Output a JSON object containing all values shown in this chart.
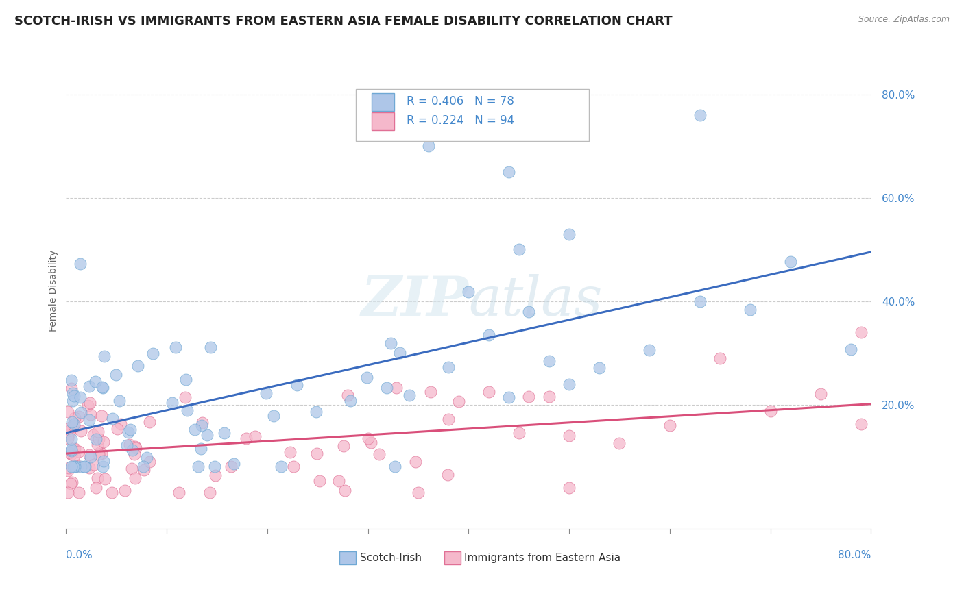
{
  "title": "SCOTCH-IRISH VS IMMIGRANTS FROM EASTERN ASIA FEMALE DISABILITY CORRELATION CHART",
  "source": "Source: ZipAtlas.com",
  "ylabel": "Female Disability",
  "xlim": [
    0.0,
    0.8
  ],
  "ylim": [
    -0.04,
    0.88
  ],
  "series1": {
    "name": "Scotch-Irish",
    "R": 0.406,
    "N": 78,
    "marker_color": "#aec6e8",
    "marker_edge": "#6fa8d4",
    "line_color": "#3a6bbf"
  },
  "series2": {
    "name": "Immigrants from Eastern Asia",
    "R": 0.224,
    "N": 94,
    "marker_color": "#f5b8cb",
    "marker_edge": "#e07095",
    "line_color": "#d94f7a"
  },
  "background_color": "#ffffff",
  "watermark": "ZIPatlas",
  "grid_color": "#cccccc",
  "title_fontsize": 13,
  "axis_label_fontsize": 10,
  "tick_fontsize": 11
}
